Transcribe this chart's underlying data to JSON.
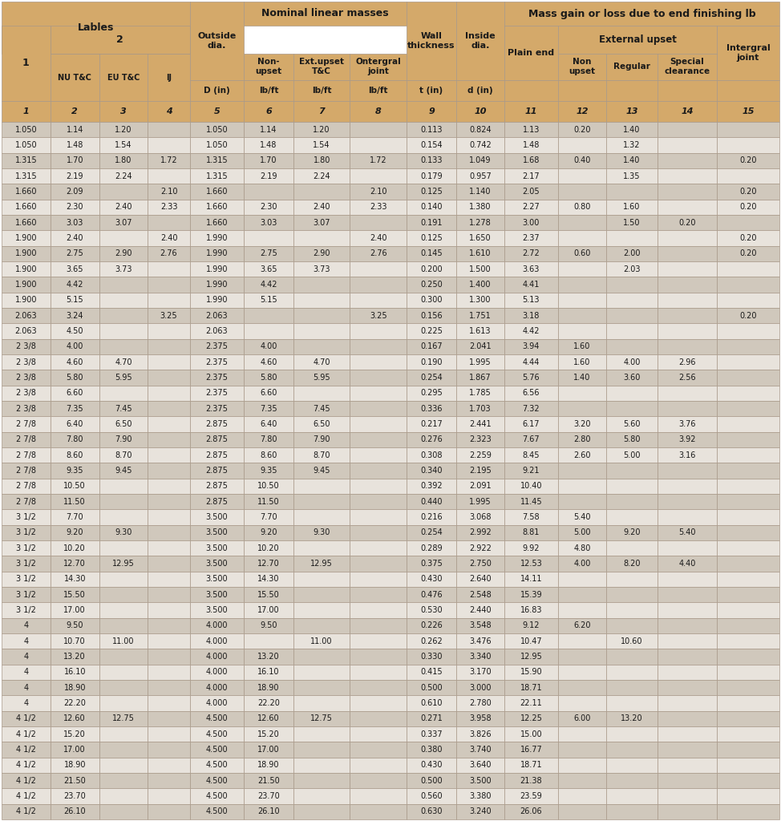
{
  "hdr_color": "#D4A96A",
  "row_odd": "#D0C8BC",
  "row_even": "#E8E3DC",
  "border_color": "#A89888",
  "text_color": "#1a1a1a",
  "rows": [
    [
      "1.050",
      "1.14",
      "1.20",
      "",
      "1.050",
      "1.14",
      "1.20",
      "",
      "0.113",
      "0.824",
      "1.13",
      "0.20",
      "1.40",
      "",
      ""
    ],
    [
      "1.050",
      "1.48",
      "1.54",
      "",
      "1.050",
      "1.48",
      "1.54",
      "",
      "0.154",
      "0.742",
      "1.48",
      "",
      "1.32",
      "",
      ""
    ],
    [
      "1.315",
      "1.70",
      "1.80",
      "1.72",
      "1.315",
      "1.70",
      "1.80",
      "1.72",
      "0.133",
      "1.049",
      "1.68",
      "0.40",
      "1.40",
      "",
      "0.20"
    ],
    [
      "1.315",
      "2.19",
      "2.24",
      "",
      "1.315",
      "2.19",
      "2.24",
      "",
      "0.179",
      "0.957",
      "2.17",
      "",
      "1.35",
      "",
      ""
    ],
    [
      "1.660",
      "2.09",
      "",
      "2.10",
      "1.660",
      "",
      "",
      "2.10",
      "0.125",
      "1.140",
      "2.05",
      "",
      "",
      "",
      "0.20"
    ],
    [
      "1.660",
      "2.30",
      "2.40",
      "2.33",
      "1.660",
      "2.30",
      "2.40",
      "2.33",
      "0.140",
      "1.380",
      "2.27",
      "0.80",
      "1.60",
      "",
      "0.20"
    ],
    [
      "1.660",
      "3.03",
      "3.07",
      "",
      "1.660",
      "3.03",
      "3.07",
      "",
      "0.191",
      "1.278",
      "3.00",
      "",
      "1.50",
      "0.20",
      ""
    ],
    [
      "1.900",
      "2.40",
      "",
      "2.40",
      "1.990",
      "",
      "",
      "2.40",
      "0.125",
      "1.650",
      "2.37",
      "",
      "",
      "",
      "0.20"
    ],
    [
      "1.900",
      "2.75",
      "2.90",
      "2.76",
      "1.990",
      "2.75",
      "2.90",
      "2.76",
      "0.145",
      "1.610",
      "2.72",
      "0.60",
      "2.00",
      "",
      "0.20"
    ],
    [
      "1.900",
      "3.65",
      "3.73",
      "",
      "1.990",
      "3.65",
      "3.73",
      "",
      "0.200",
      "1.500",
      "3.63",
      "",
      "2.03",
      "",
      ""
    ],
    [
      "1.900",
      "4.42",
      "",
      "",
      "1.990",
      "4.42",
      "",
      "",
      "0.250",
      "1.400",
      "4.41",
      "",
      "",
      "",
      ""
    ],
    [
      "1.900",
      "5.15",
      "",
      "",
      "1.990",
      "5.15",
      "",
      "",
      "0.300",
      "1.300",
      "5.13",
      "",
      "",
      "",
      ""
    ],
    [
      "2.063",
      "3.24",
      "",
      "3.25",
      "2.063",
      "",
      "",
      "3.25",
      "0.156",
      "1.751",
      "3.18",
      "",
      "",
      "",
      "0.20"
    ],
    [
      "2.063",
      "4.50",
      "",
      "",
      "2.063",
      "",
      "",
      "",
      "0.225",
      "1.613",
      "4.42",
      "",
      "",
      "",
      ""
    ],
    [
      "2 3/8",
      "4.00",
      "",
      "",
      "2.375",
      "4.00",
      "",
      "",
      "0.167",
      "2.041",
      "3.94",
      "1.60",
      "",
      "",
      ""
    ],
    [
      "2 3/8",
      "4.60",
      "4.70",
      "",
      "2.375",
      "4.60",
      "4.70",
      "",
      "0.190",
      "1.995",
      "4.44",
      "1.60",
      "4.00",
      "2.96",
      ""
    ],
    [
      "2 3/8",
      "5.80",
      "5.95",
      "",
      "2.375",
      "5.80",
      "5.95",
      "",
      "0.254",
      "1.867",
      "5.76",
      "1.40",
      "3.60",
      "2.56",
      ""
    ],
    [
      "2 3/8",
      "6.60",
      "",
      "",
      "2.375",
      "6.60",
      "",
      "",
      "0.295",
      "1.785",
      "6.56",
      "",
      "",
      "",
      ""
    ],
    [
      "2 3/8",
      "7.35",
      "7.45",
      "",
      "2.375",
      "7.35",
      "7.45",
      "",
      "0.336",
      "1.703",
      "7.32",
      "",
      "",
      "",
      ""
    ],
    [
      "2 7/8",
      "6.40",
      "6.50",
      "",
      "2.875",
      "6.40",
      "6.50",
      "",
      "0.217",
      "2.441",
      "6.17",
      "3.20",
      "5.60",
      "3.76",
      ""
    ],
    [
      "2 7/8",
      "7.80",
      "7.90",
      "",
      "2.875",
      "7.80",
      "7.90",
      "",
      "0.276",
      "2.323",
      "7.67",
      "2.80",
      "5.80",
      "3.92",
      ""
    ],
    [
      "2 7/8",
      "8.60",
      "8.70",
      "",
      "2.875",
      "8.60",
      "8.70",
      "",
      "0.308",
      "2.259",
      "8.45",
      "2.60",
      "5.00",
      "3.16",
      ""
    ],
    [
      "2 7/8",
      "9.35",
      "9.45",
      "",
      "2.875",
      "9.35",
      "9.45",
      "",
      "0.340",
      "2.195",
      "9.21",
      "",
      "",
      "",
      ""
    ],
    [
      "2 7/8",
      "10.50",
      "",
      "",
      "2.875",
      "10.50",
      "",
      "",
      "0.392",
      "2.091",
      "10.40",
      "",
      "",
      "",
      ""
    ],
    [
      "2 7/8",
      "11.50",
      "",
      "",
      "2.875",
      "11.50",
      "",
      "",
      "0.440",
      "1.995",
      "11.45",
      "",
      "",
      "",
      ""
    ],
    [
      "3 1/2",
      "7.70",
      "",
      "",
      "3.500",
      "7.70",
      "",
      "",
      "0.216",
      "3.068",
      "7.58",
      "5.40",
      "",
      "",
      ""
    ],
    [
      "3 1/2",
      "9.20",
      "9.30",
      "",
      "3.500",
      "9.20",
      "9.30",
      "",
      "0.254",
      "2.992",
      "8.81",
      "5.00",
      "9.20",
      "5.40",
      ""
    ],
    [
      "3 1/2",
      "10.20",
      "",
      "",
      "3.500",
      "10.20",
      "",
      "",
      "0.289",
      "2.922",
      "9.92",
      "4.80",
      "",
      "",
      ""
    ],
    [
      "3 1/2",
      "12.70",
      "12.95",
      "",
      "3.500",
      "12.70",
      "12.95",
      "",
      "0.375",
      "2.750",
      "12.53",
      "4.00",
      "8.20",
      "4.40",
      ""
    ],
    [
      "3 1/2",
      "14.30",
      "",
      "",
      "3.500",
      "14.30",
      "",
      "",
      "0.430",
      "2.640",
      "14.11",
      "",
      "",
      "",
      ""
    ],
    [
      "3 1/2",
      "15.50",
      "",
      "",
      "3.500",
      "15.50",
      "",
      "",
      "0.476",
      "2.548",
      "15.39",
      "",
      "",
      "",
      ""
    ],
    [
      "3 1/2",
      "17.00",
      "",
      "",
      "3.500",
      "17.00",
      "",
      "",
      "0.530",
      "2.440",
      "16.83",
      "",
      "",
      "",
      ""
    ],
    [
      "4",
      "9.50",
      "",
      "",
      "4.000",
      "9.50",
      "",
      "",
      "0.226",
      "3.548",
      "9.12",
      "6.20",
      "",
      "",
      ""
    ],
    [
      "4",
      "10.70",
      "11.00",
      "",
      "4.000",
      "",
      "11.00",
      "",
      "0.262",
      "3.476",
      "10.47",
      "",
      "10.60",
      "",
      ""
    ],
    [
      "4",
      "13.20",
      "",
      "",
      "4.000",
      "13.20",
      "",
      "",
      "0.330",
      "3.340",
      "12.95",
      "",
      "",
      "",
      ""
    ],
    [
      "4",
      "16.10",
      "",
      "",
      "4.000",
      "16.10",
      "",
      "",
      "0.415",
      "3.170",
      "15.90",
      "",
      "",
      "",
      ""
    ],
    [
      "4",
      "18.90",
      "",
      "",
      "4.000",
      "18.90",
      "",
      "",
      "0.500",
      "3.000",
      "18.71",
      "",
      "",
      "",
      ""
    ],
    [
      "4",
      "22.20",
      "",
      "",
      "4.000",
      "22.20",
      "",
      "",
      "0.610",
      "2.780",
      "22.11",
      "",
      "",
      "",
      ""
    ],
    [
      "4 1/2",
      "12.60",
      "12.75",
      "",
      "4.500",
      "12.60",
      "12.75",
      "",
      "0.271",
      "3.958",
      "12.25",
      "6.00",
      "13.20",
      "",
      ""
    ],
    [
      "4 1/2",
      "15.20",
      "",
      "",
      "4.500",
      "15.20",
      "",
      "",
      "0.337",
      "3.826",
      "15.00",
      "",
      "",
      "",
      ""
    ],
    [
      "4 1/2",
      "17.00",
      "",
      "",
      "4.500",
      "17.00",
      "",
      "",
      "0.380",
      "3.740",
      "16.77",
      "",
      "",
      "",
      ""
    ],
    [
      "4 1/2",
      "18.90",
      "",
      "",
      "4.500",
      "18.90",
      "",
      "",
      "0.430",
      "3.640",
      "18.71",
      "",
      "",
      "",
      ""
    ],
    [
      "4 1/2",
      "21.50",
      "",
      "",
      "4.500",
      "21.50",
      "",
      "",
      "0.500",
      "3.500",
      "21.38",
      "",
      "",
      "",
      ""
    ],
    [
      "4 1/2",
      "23.70",
      "",
      "",
      "4.500",
      "23.70",
      "",
      "",
      "0.560",
      "3.380",
      "23.59",
      "",
      "",
      "",
      ""
    ],
    [
      "4 1/2",
      "26.10",
      "",
      "",
      "4.500",
      "26.10",
      "",
      "",
      "0.630",
      "3.240",
      "26.06",
      "",
      "",
      "",
      ""
    ]
  ]
}
